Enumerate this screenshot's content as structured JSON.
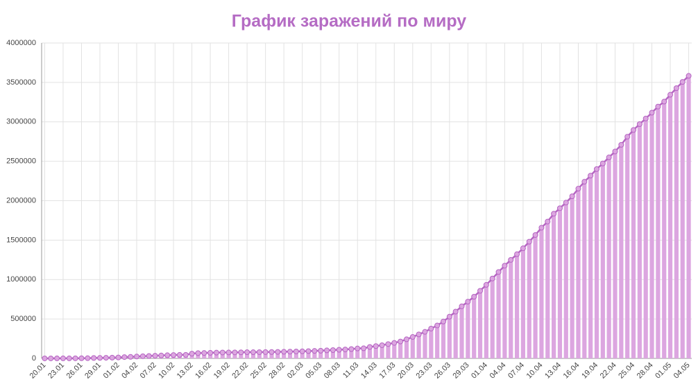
{
  "chart_data": {
    "type": "bar",
    "title": "График заражений по миру",
    "categories": [
      "20.01",
      null,
      null,
      "23.01",
      null,
      null,
      "26.01",
      null,
      null,
      "29.01",
      null,
      null,
      "01.02",
      null,
      null,
      "04.02",
      null,
      null,
      "07.02",
      null,
      null,
      "10.02",
      null,
      null,
      "13.02",
      null,
      null,
      "16.02",
      null,
      null,
      "19.02",
      null,
      null,
      "22.02",
      null,
      null,
      "25.02",
      null,
      null,
      "28.02",
      null,
      null,
      "02.03",
      null,
      null,
      "05.03",
      null,
      null,
      "08.03",
      null,
      null,
      "11.03",
      null,
      null,
      "14.03",
      null,
      null,
      "17.03",
      null,
      null,
      "20.03",
      null,
      null,
      "23.03",
      null,
      null,
      "26.03",
      null,
      null,
      "29.03",
      null,
      null,
      "01.04",
      null,
      null,
      "04.04",
      null,
      null,
      "07.04",
      null,
      null,
      "10.04",
      null,
      null,
      "13.04",
      null,
      null,
      "16.04",
      null,
      null,
      "19.04",
      null,
      null,
      "22.04",
      null,
      null,
      "25.04",
      null,
      null,
      "28.04",
      null,
      null,
      "01.05",
      null,
      null,
      "04.05"
    ],
    "values": [
      282,
      314,
      555,
      654,
      941,
      1434,
      2118,
      2927,
      5578,
      6166,
      8234,
      9927,
      12038,
      16787,
      19881,
      23892,
      27635,
      30794,
      34391,
      37120,
      40150,
      42762,
      44802,
      45221,
      60368,
      66885,
      69030,
      71224,
      73258,
      75136,
      75639,
      76197,
      76819,
      78572,
      78958,
      79561,
      80406,
      81388,
      82746,
      84112,
      86011,
      88369,
      90306,
      92840,
      95120,
      97886,
      101801,
      105847,
      109821,
      113590,
      118620,
      125875,
      128352,
      145205,
      156101,
      167454,
      181574,
      197102,
      214821,
      242570,
      272208,
      304507,
      336953,
      378235,
      418045,
      467653,
      529591,
      593291,
      660706,
      720117,
      782365,
      857487,
      932605,
      1013466,
      1095917,
      1176060,
      1249754,
      1321481,
      1396476,
      1480202,
      1565278,
      1657526,
      1735650,
      1834721,
      1904838,
      1976191,
      2056054,
      2152437,
      2240190,
      2317758,
      2401378,
      2472258,
      2549123,
      2624068,
      2708885,
      2811193,
      2896746,
      2971475,
      3041764,
      3116398,
      3193886,
      3256846,
      3343777,
      3427343,
      3506729,
      3583055
    ],
    "color": "#dca6e0",
    "line": true,
    "line_color": "#b565c2",
    "ylim": [
      0,
      4000000
    ],
    "yticks": [
      0,
      500000,
      1000000,
      1500000,
      2000000,
      2500000,
      3000000,
      3500000,
      4000000
    ],
    "grid": true
  }
}
